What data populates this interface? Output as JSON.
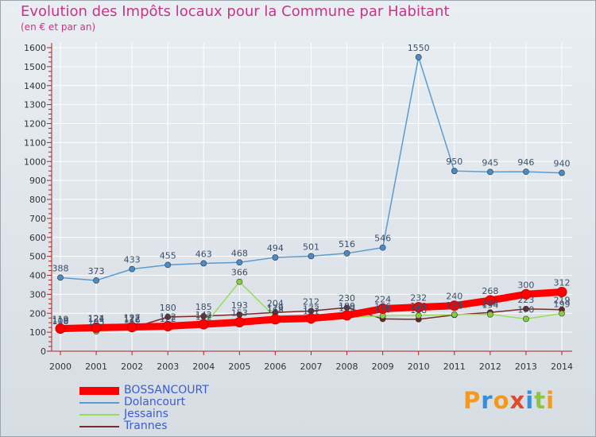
{
  "title": "Evolution des Impôts locaux pour la Commune par Habitant",
  "subtitle": "(en € et par an)",
  "logo": {
    "text": "Proxiti",
    "letters": [
      "P",
      "r",
      "o",
      "x",
      "i",
      "t",
      "i"
    ],
    "colors": [
      "#f29a1e",
      "#3a8ed8",
      "#f29a1e",
      "#e04a2a",
      "#3a8ed8",
      "#8cc63f",
      "#f29a1e"
    ]
  },
  "chart_data": {
    "type": "line",
    "title": "Evolution des Impôts locaux pour la Commune par Habitant",
    "ylabel": "(en € et par an)",
    "ylim": [
      0,
      1600
    ],
    "yticks": [
      "0",
      "100",
      "200",
      "300",
      "400",
      "500",
      "600",
      "700",
      "800",
      "900",
      "1000",
      "1100",
      "1200",
      "1300",
      "1400",
      "1500",
      "1600"
    ],
    "categories": [
      "2000",
      "2001",
      "2002",
      "2003",
      "2004",
      "2005",
      "2006",
      "2007",
      "2008",
      "2009",
      "2010",
      "2011",
      "2012",
      "2013",
      "2014"
    ],
    "series": [
      {
        "name": "BOSSANCOURT",
        "color": "#ff0000",
        "values": [
          119,
          124,
          127,
          132,
          142,
          153,
          168,
          173,
          189,
          224,
          232,
          240,
          268,
          300,
          312
        ],
        "labels": [
          "119",
          "124",
          "127",
          "132",
          "142",
          "153",
          "168",
          "173",
          "189",
          "224",
          "232",
          "240",
          "268",
          "300",
          "312"
        ]
      },
      {
        "name": "Dolancourt",
        "color": "#5b9bd0",
        "values": [
          388,
          373,
          433,
          455,
          463,
          468,
          494,
          501,
          516,
          546,
          1550,
          950,
          945,
          946,
          940
        ],
        "labels": [
          "388",
          "373",
          "433",
          "455",
          "463",
          "468",
          "494",
          "501",
          "516",
          "546",
          "1550",
          "950",
          "945",
          "946",
          "940"
        ]
      },
      {
        "name": "Jessains",
        "color": "#99dd55",
        "values": [
          108,
          105,
          116,
          122,
          132,
          366,
          179,
          161,
          179,
          186,
          188,
          193,
          194,
          170,
          199
        ],
        "labels": [
          "108",
          "105",
          "116",
          "122",
          "132",
          "366",
          "179",
          "161",
          "179",
          "186",
          "188",
          "193",
          "194",
          "170",
          "199"
        ]
      },
      {
        "name": "Trannes",
        "color": "#7a2a2a",
        "values": [
          110,
          121,
          122,
          180,
          185,
          193,
          204,
          212,
          230,
          170,
          168,
          191,
          204,
          223,
          219
        ],
        "labels": [
          "110",
          "121",
          "122",
          "180",
          "185",
          "193",
          "204",
          "212",
          "230",
          "170",
          "168",
          "191",
          "204",
          "223",
          "219"
        ]
      }
    ],
    "legend_position": "bottom-left",
    "grid": true
  }
}
